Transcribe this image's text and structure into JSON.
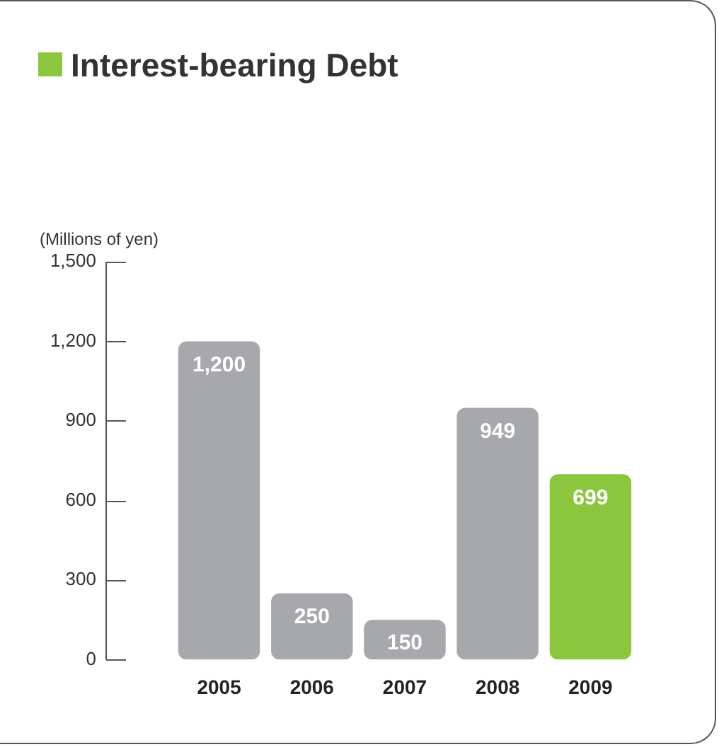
{
  "chart_data": {
    "type": "bar",
    "title": "Interest-bearing Debt",
    "ylabel": "(Millions of yen)",
    "categories": [
      "2005",
      "2006",
      "2007",
      "2008",
      "2009"
    ],
    "values": [
      1200,
      250,
      150,
      949,
      699
    ],
    "colors": [
      "#a7a8ab",
      "#a7a8ab",
      "#a7a8ab",
      "#a7a8ab",
      "#8cc63f"
    ],
    "value_labels": [
      "1,200",
      "250",
      "150",
      "949",
      "699"
    ],
    "ylim": [
      0,
      1500
    ],
    "yticks": [
      0,
      300,
      600,
      900,
      {
        "value": 1200,
        "label": "1,200"
      },
      {
        "value": 1500,
        "label": "1,500"
      }
    ],
    "grid": false,
    "legend": false
  }
}
